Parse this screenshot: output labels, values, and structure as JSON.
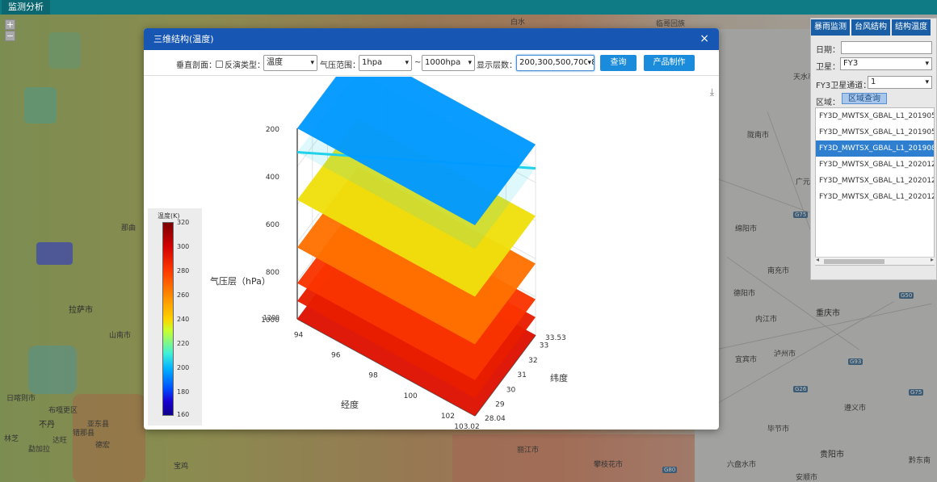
{
  "app": {
    "top_tab": "监测分析"
  },
  "map": {
    "zoom_in": "+",
    "zoom_out": "−",
    "labels": {
      "baishui": "白水",
      "linhe": "临哥回族",
      "nachu": "那曲",
      "lasa": "拉萨市",
      "shannan": "山南市",
      "xigaze": "日喀则市",
      "buzhangqu": "布嘎更区",
      "budan": "不丹",
      "yadong": "亚东县",
      "cuona": "错那县",
      "linzhi": "林芝",
      "dalian": "达旺",
      "bomi": "勐加拉",
      "dali": "德宏",
      "leshan": "攀枝花市",
      "yibin": "宜宾市",
      "guiyang": "贵阳市",
      "zunyi": "遵义市",
      "chongqing": "重庆市",
      "neijiang": "内江市",
      "nanchong": "南充市",
      "mianyang": "绵阳市",
      "deyang": "德阳市",
      "luzhou": "泸州市",
      "bijie": "毕节市",
      "longnan": "陇南市",
      "guangyuan": "广元",
      "tianshui": "天水市",
      "anshun": "安顺市",
      "liupanshui": "六盘水市",
      "qiandongnan": "黔东南",
      "lijiang": "丽江市",
      "baoshan": "宝鸡"
    }
  },
  "right_panel": {
    "tabs": [
      "暴雨监测",
      "台风结构",
      "结构温度"
    ],
    "date_label": "日期：",
    "date_value": "",
    "satellite_label": "卫星：",
    "satellite_value": "FY3",
    "channel_label": "FY3卫星通道：",
    "channel_value": "1",
    "area_label": "区域：",
    "area_button": "区域查询",
    "files": [
      "FY3D_MWTSX_GBAL_L1_20190501",
      "FY3D_MWTSX_GBAL_L1_20190501",
      "FY3D_MWTSX_GBAL_L1_20190811",
      "FY3D_MWTSX_GBAL_L1_20201201",
      "FY3D_MWTSX_GBAL_L1_20201201",
      "FY3D_MWTSX_GBAL_L1_20201201"
    ],
    "selected_index": 2
  },
  "dialog": {
    "title": "三维结构(温度)",
    "close": "×",
    "toolbar": {
      "section_label": "垂直剖面：",
      "invert_label": "反演类型：",
      "invert_value": "温度",
      "pressure_label": "气压范围：",
      "pressure_from": "1hpa",
      "tilde": "~",
      "pressure_to": "1000hpa",
      "levels_label": "显示层数：",
      "levels_value": "200,300,500,700,8",
      "query_button": "查询",
      "make_button": "产品制作"
    },
    "download_icon": "⤓"
  },
  "chart_data": {
    "type": "surface-3d",
    "zlabel": "气压层（hPa）",
    "xlabel": "经度",
    "ylabel": "纬度",
    "z_ticks": [
      "200",
      "400",
      "600",
      "800",
      "1000"
    ],
    "z_ticks_extra": "1200",
    "x_ticks": [
      "94",
      "96",
      "98",
      "100",
      "102",
      "103.02"
    ],
    "y_ticks": [
      "28.04",
      "29",
      "30",
      "31",
      "32",
      "33",
      "33.53"
    ],
    "levels": [
      {
        "pressure": 200,
        "temperature": 215
      },
      {
        "pressure": 300,
        "temperature": 228
      },
      {
        "pressure": 500,
        "temperature": 262
      },
      {
        "pressure": 700,
        "temperature": 285
      },
      {
        "pressure": 850,
        "temperature": 296
      },
      {
        "pressure": 925,
        "temperature": 300
      },
      {
        "pressure": 1000,
        "temperature": 302
      }
    ],
    "colorbar": {
      "title": "温度(K)",
      "ticks": [
        "320",
        "300",
        "280",
        "260",
        "240",
        "220",
        "200",
        "180",
        "160"
      ],
      "range": [
        160,
        320
      ]
    }
  }
}
